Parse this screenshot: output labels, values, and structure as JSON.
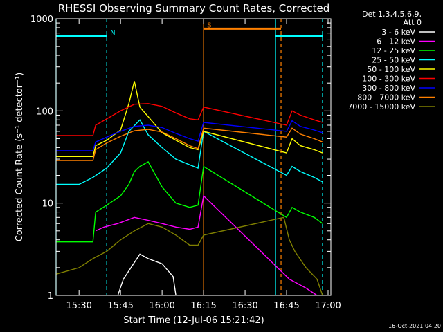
{
  "chart_data": {
    "type": "line",
    "title": "RHESSI Observing Summary Count Rates, Corrected",
    "xlabel": "Start Time (12-Jul-06 15:21:42)",
    "ylabel": "Corrected Count Rate (s⁻¹ detector⁻¹)",
    "y_scale": "log",
    "ylim": [
      1,
      1000
    ],
    "xlim": [
      "15:21:42",
      "17:01:00"
    ],
    "x_ticks": [
      "15:30",
      "15:45",
      "16:00",
      "16:15",
      "16:30",
      "16:45",
      "17:00"
    ],
    "y_ticks": [
      "1",
      "10",
      "100",
      "1000"
    ],
    "legend_header": [
      "Det 1,3,4,5,6,9,",
      "Att 0"
    ],
    "series": [
      {
        "name": "3 - 6 keV",
        "color": "#ffffff",
        "x": [
          "15:44",
          "15:46",
          "15:52",
          "15:55",
          "16:00",
          "16:04",
          "16:05"
        ],
        "y": [
          1,
          1.5,
          2.8,
          2.5,
          2.2,
          1.6,
          1
        ]
      },
      {
        "name": "6 - 12 keV",
        "color": "#ff00ff",
        "x": [
          "15:36",
          "15:39",
          "15:44",
          "15:50",
          "15:55",
          "16:00",
          "16:05",
          "16:10",
          "16:13",
          "16:15",
          "16:46",
          "16:52",
          "16:56"
        ],
        "y": [
          5,
          5.5,
          6,
          7,
          6.5,
          6,
          5.5,
          5.2,
          5.5,
          12,
          1.5,
          1.2,
          1
        ]
      },
      {
        "name": "12 - 25 keV",
        "color": "#00ff00",
        "x": [
          "15:21:42",
          "15:35",
          "15:36",
          "15:40",
          "15:45",
          "15:48",
          "15:50",
          "15:52",
          "15:55",
          "16:00",
          "16:05",
          "16:10",
          "16:13",
          "16:15",
          "16:45",
          "16:47",
          "16:50",
          "16:55",
          "16:58"
        ],
        "y": [
          3.8,
          3.8,
          8,
          9.5,
          12,
          16,
          22,
          25,
          28,
          15,
          10,
          9,
          9.5,
          25,
          7,
          9,
          8,
          7,
          6
        ]
      },
      {
        "name": "25 - 50 keV",
        "color": "#00ffff",
        "x": [
          "15:21:42",
          "15:30",
          "15:35",
          "15:40",
          "15:45",
          "15:48",
          "15:52",
          "15:55",
          "16:00",
          "16:05",
          "16:10",
          "16:13",
          "16:15",
          "16:45",
          "16:47",
          "16:50",
          "16:55",
          "16:58"
        ],
        "y": [
          16,
          16,
          19,
          24,
          35,
          60,
          80,
          55,
          40,
          30,
          26,
          24,
          60,
          20,
          25,
          22,
          19,
          17
        ]
      },
      {
        "name": "50 - 100 keV",
        "color": "#ffff00",
        "x": [
          "15:21:42",
          "15:35",
          "15:36",
          "15:40",
          "15:45",
          "15:48",
          "15:50",
          "15:52",
          "15:56",
          "16:00",
          "16:05",
          "16:10",
          "16:13",
          "16:15",
          "16:45",
          "16:47",
          "16:50",
          "16:55",
          "16:58"
        ],
        "y": [
          32,
          32,
          42,
          48,
          62,
          120,
          210,
          110,
          80,
          58,
          48,
          40,
          38,
          60,
          35,
          50,
          42,
          38,
          35
        ]
      },
      {
        "name": "100 - 300 keV",
        "color": "#ff0000",
        "x": [
          "15:21:42",
          "15:35",
          "15:36",
          "15:40",
          "15:45",
          "15:50",
          "15:55",
          "16:00",
          "16:05",
          "16:10",
          "16:13",
          "16:15",
          "16:45",
          "16:47",
          "16:50",
          "16:55",
          "16:58"
        ],
        "y": [
          54,
          54,
          70,
          82,
          100,
          118,
          120,
          112,
          95,
          82,
          80,
          110,
          70,
          100,
          90,
          80,
          75
        ]
      },
      {
        "name": "300 - 800 keV",
        "color": "#0000ff",
        "x": [
          "15:21:42",
          "15:35",
          "15:36",
          "15:40",
          "15:45",
          "15:50",
          "15:55",
          "16:00",
          "16:05",
          "16:10",
          "16:13",
          "16:15",
          "16:45",
          "16:47",
          "16:50",
          "16:55",
          "16:58"
        ],
        "y": [
          37,
          37,
          46,
          52,
          60,
          68,
          70,
          66,
          57,
          50,
          47,
          75,
          60,
          78,
          68,
          62,
          58
        ]
      },
      {
        "name": "800 - 7000 keV",
        "color": "#ff8000",
        "x": [
          "15:21:42",
          "15:35",
          "15:36",
          "15:40",
          "15:45",
          "15:50",
          "15:55",
          "16:00",
          "16:05",
          "16:10",
          "16:13",
          "16:15",
          "16:45",
          "16:47",
          "16:50",
          "16:55",
          "16:58"
        ],
        "y": [
          29,
          29,
          38,
          45,
          53,
          61,
          63,
          59,
          50,
          42,
          39,
          65,
          52,
          65,
          56,
          50,
          46
        ]
      },
      {
        "name": "7000 - 15000 keV",
        "color": "#808000",
        "x": [
          "15:21:42",
          "15:30",
          "15:35",
          "15:40",
          "15:45",
          "15:50",
          "15:55",
          "16:00",
          "16:05",
          "16:10",
          "16:13",
          "16:15",
          "16:44",
          "16:46",
          "16:48",
          "16:52",
          "16:56",
          "16:58"
        ],
        "y": [
          1.7,
          2,
          2.5,
          3,
          4,
          5,
          6,
          5.5,
          4.5,
          3.5,
          3.5,
          4.5,
          7,
          4,
          3,
          2,
          1.5,
          1
        ]
      }
    ],
    "bars": [
      {
        "label": "",
        "color": "#00ffff",
        "x": [
          "15:21:42",
          "15:40"
        ],
        "y": 650
      },
      {
        "label": "N",
        "color": "#00ffff",
        "x": [
          "15:40",
          "15:40"
        ],
        "y": 650
      },
      {
        "label": "",
        "color": "#00ffff",
        "x": [
          "16:41",
          "16:58"
        ],
        "y": 650
      },
      {
        "label": "S",
        "color": "#ff8000",
        "x": [
          "16:15",
          "16:43"
        ],
        "y": 780
      }
    ],
    "vlines": [
      {
        "x": "15:21:42",
        "color": "#00ffff",
        "style": "solid"
      },
      {
        "x": "15:40",
        "color": "#00ffff",
        "style": "dashed"
      },
      {
        "x": "16:15",
        "color": "#ff8000",
        "style": "solid"
      },
      {
        "x": "16:41",
        "color": "#00ffff",
        "style": "solid"
      },
      {
        "x": "16:43",
        "color": "#ff8000",
        "style": "dashed"
      },
      {
        "x": "16:58",
        "color": "#00ffff",
        "style": "dashed"
      }
    ],
    "footer": "16-Oct-2021 04:20"
  }
}
